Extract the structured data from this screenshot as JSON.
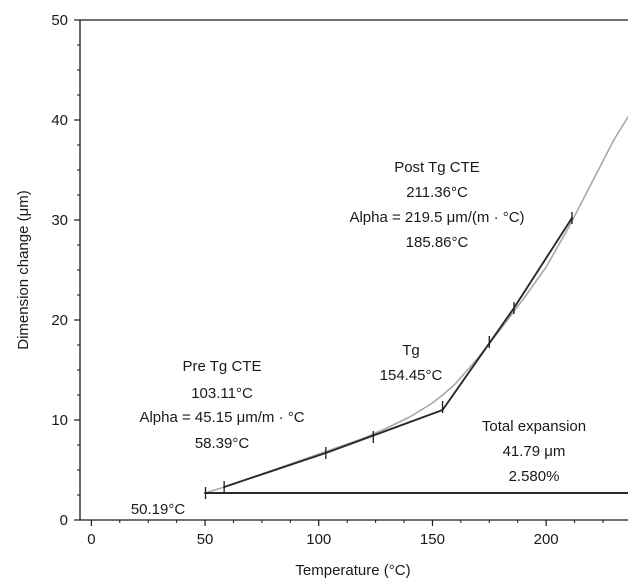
{
  "chart_data": {
    "type": "line",
    "xlabel": "Temperature (°C)",
    "ylabel": "Dimension change (μm)",
    "xlim": [
      -5,
      236
    ],
    "ylim": [
      0,
      50
    ],
    "x_ticks": [
      "0",
      "50",
      "100",
      "150",
      "200"
    ],
    "x_tick_values": [
      0,
      50,
      100,
      150,
      200
    ],
    "y_ticks": [
      "0",
      "10",
      "20",
      "30",
      "40",
      "50"
    ],
    "y_tick_values": [
      0,
      10,
      20,
      30,
      40,
      50
    ],
    "grid": false,
    "series": [
      {
        "color": "#a8a8a8",
        "x": [
          50,
          60,
          70,
          80,
          90,
          100,
          110,
          120,
          130,
          140,
          150,
          155,
          160,
          170,
          180,
          190,
          200,
          210,
          220,
          230,
          236
        ],
        "y": [
          2.7,
          3.4,
          4.2,
          5.0,
          5.8,
          6.6,
          7.4,
          8.2,
          9.2,
          10.3,
          11.7,
          12.6,
          13.6,
          16.2,
          19.1,
          22.1,
          25.3,
          29.3,
          33.7,
          38.1,
          40.3
        ]
      },
      {
        "color": "#2a2a2a",
        "x": [
          58.39,
          103.11
        ],
        "y": [
          3.3,
          6.7
        ]
      },
      {
        "color": "#2a2a2a",
        "x": [
          103.11,
          154.45
        ],
        "y": [
          6.7,
          11.0
        ]
      },
      {
        "color": "#2a2a2a",
        "x": [
          154.45,
          185.86,
          211.36
        ],
        "y": [
          11.0,
          21.2,
          30.2
        ]
      },
      {
        "color": "#2a2a2a",
        "x": [
          50,
          236
        ],
        "y": [
          2.7,
          2.7
        ]
      }
    ],
    "markers": [
      {
        "x": 50.19,
        "y": 2.7
      },
      {
        "x": 58.39,
        "y": 3.3
      },
      {
        "x": 103.11,
        "y": 6.7
      },
      {
        "x": 124,
        "y": 8.3
      },
      {
        "x": 154.45,
        "y": 11.3
      },
      {
        "x": 175,
        "y": 17.8
      },
      {
        "x": 185.86,
        "y": 21.2
      },
      {
        "x": 211.36,
        "y": 30.2
      }
    ],
    "annotations": {
      "post_tg": [
        "Post Tg CTE",
        "211.36°C",
        "Alpha = 219.5 μm/(m · °C)",
        "185.86°C"
      ],
      "tg": [
        "Tg",
        "154.45°C"
      ],
      "pre_tg": [
        "Pre Tg CTE",
        "103.11°C",
        "Alpha = 45.15 μm/m · °C",
        "58.39°C"
      ],
      "total": [
        "Total expansion",
        "41.79 μm",
        "2.580%"
      ],
      "onset": "50.19°C"
    }
  }
}
